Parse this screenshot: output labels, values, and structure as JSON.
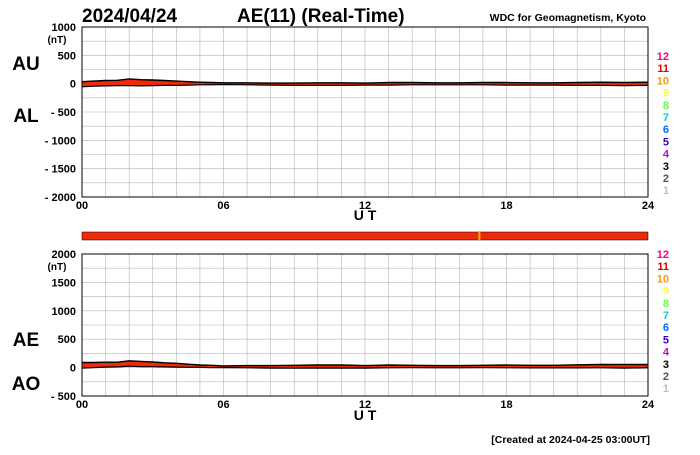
{
  "header": {
    "date": "2024/04/24",
    "title": "AE(11) (Real-Time)",
    "source": "WDC for Geomagnetism, Kyoto"
  },
  "footer": {
    "created": "[Created at 2024-04-25 03:00UT]"
  },
  "station_legend": {
    "labels": [
      "12",
      "11",
      "10",
      "9",
      "8",
      "7",
      "6",
      "5",
      "4",
      "3",
      "2",
      "1"
    ],
    "colors": [
      "#ff0080",
      "#e00000",
      "#ff9900",
      "#ffff33",
      "#66ff33",
      "#00cccc",
      "#0066ff",
      "#3300cc",
      "#cc00cc",
      "#000000",
      "#555555",
      "#c0c0c0"
    ]
  },
  "station_bar": {
    "color": "#ee2a0a",
    "marker_color": "#ffaa00",
    "marker_hour": 16.85
  },
  "chart_data": [
    {
      "type": "area",
      "panel": "AU/AL",
      "unit_label": "(nT)",
      "series_labels": [
        "AU",
        "AL"
      ],
      "xlabel": "U T",
      "xlim": [
        0,
        24
      ],
      "xticks": [
        "00",
        "06",
        "12",
        "18",
        "24"
      ],
      "ylim": [
        -2000,
        1000
      ],
      "yticks": [
        "1000",
        "500",
        "0",
        "- 500",
        "- 1000",
        "- 1500",
        "- 2000"
      ],
      "grid": true,
      "fill_color": "#ee2a0a",
      "x": [
        0,
        0.5,
        1,
        1.5,
        2,
        2.5,
        3,
        3.5,
        4,
        4.5,
        5,
        5.5,
        6,
        7,
        8,
        9,
        10,
        11,
        12,
        13,
        14,
        15,
        16,
        17,
        18,
        19,
        20,
        21,
        22,
        23,
        24
      ],
      "au": [
        35,
        45,
        55,
        60,
        85,
        70,
        65,
        55,
        45,
        35,
        25,
        20,
        15,
        15,
        10,
        10,
        15,
        15,
        10,
        20,
        20,
        15,
        15,
        20,
        20,
        15,
        15,
        20,
        25,
        20,
        25
      ],
      "al": [
        -55,
        -45,
        -40,
        -35,
        -35,
        -40,
        -35,
        -30,
        -30,
        -25,
        -20,
        -20,
        -15,
        -20,
        -25,
        -30,
        -30,
        -30,
        -25,
        -25,
        -20,
        -20,
        -20,
        -20,
        -25,
        -25,
        -25,
        -30,
        -30,
        -35,
        -30
      ]
    },
    {
      "type": "area",
      "panel": "AE/AO",
      "unit_label": "(nT)",
      "series_labels": [
        "AE",
        "AO"
      ],
      "xlabel": "U T",
      "xlim": [
        0,
        24
      ],
      "xticks": [
        "00",
        "06",
        "12",
        "18",
        "24"
      ],
      "ylim": [
        -500,
        2000
      ],
      "yticks": [
        "2000",
        "1500",
        "1000",
        "500",
        "0",
        "- 500"
      ],
      "grid": true,
      "fill_color": "#ee2a0a",
      "x": [
        0,
        0.5,
        1,
        1.5,
        2,
        2.5,
        3,
        3.5,
        4,
        4.5,
        5,
        5.5,
        6,
        7,
        8,
        9,
        10,
        11,
        12,
        13,
        14,
        15,
        16,
        17,
        18,
        19,
        20,
        21,
        22,
        23,
        24
      ],
      "ae": [
        90,
        90,
        95,
        95,
        120,
        110,
        100,
        85,
        75,
        60,
        45,
        40,
        30,
        35,
        35,
        40,
        45,
        45,
        35,
        45,
        40,
        35,
        35,
        40,
        45,
        40,
        40,
        50,
        55,
        55,
        55
      ],
      "ao": [
        -10,
        0,
        8,
        12,
        25,
        15,
        15,
        12,
        8,
        5,
        3,
        0,
        0,
        -3,
        -8,
        -10,
        -8,
        -8,
        -8,
        -3,
        0,
        -3,
        -3,
        0,
        -3,
        -5,
        -5,
        -5,
        -3,
        -8,
        -3
      ]
    }
  ]
}
